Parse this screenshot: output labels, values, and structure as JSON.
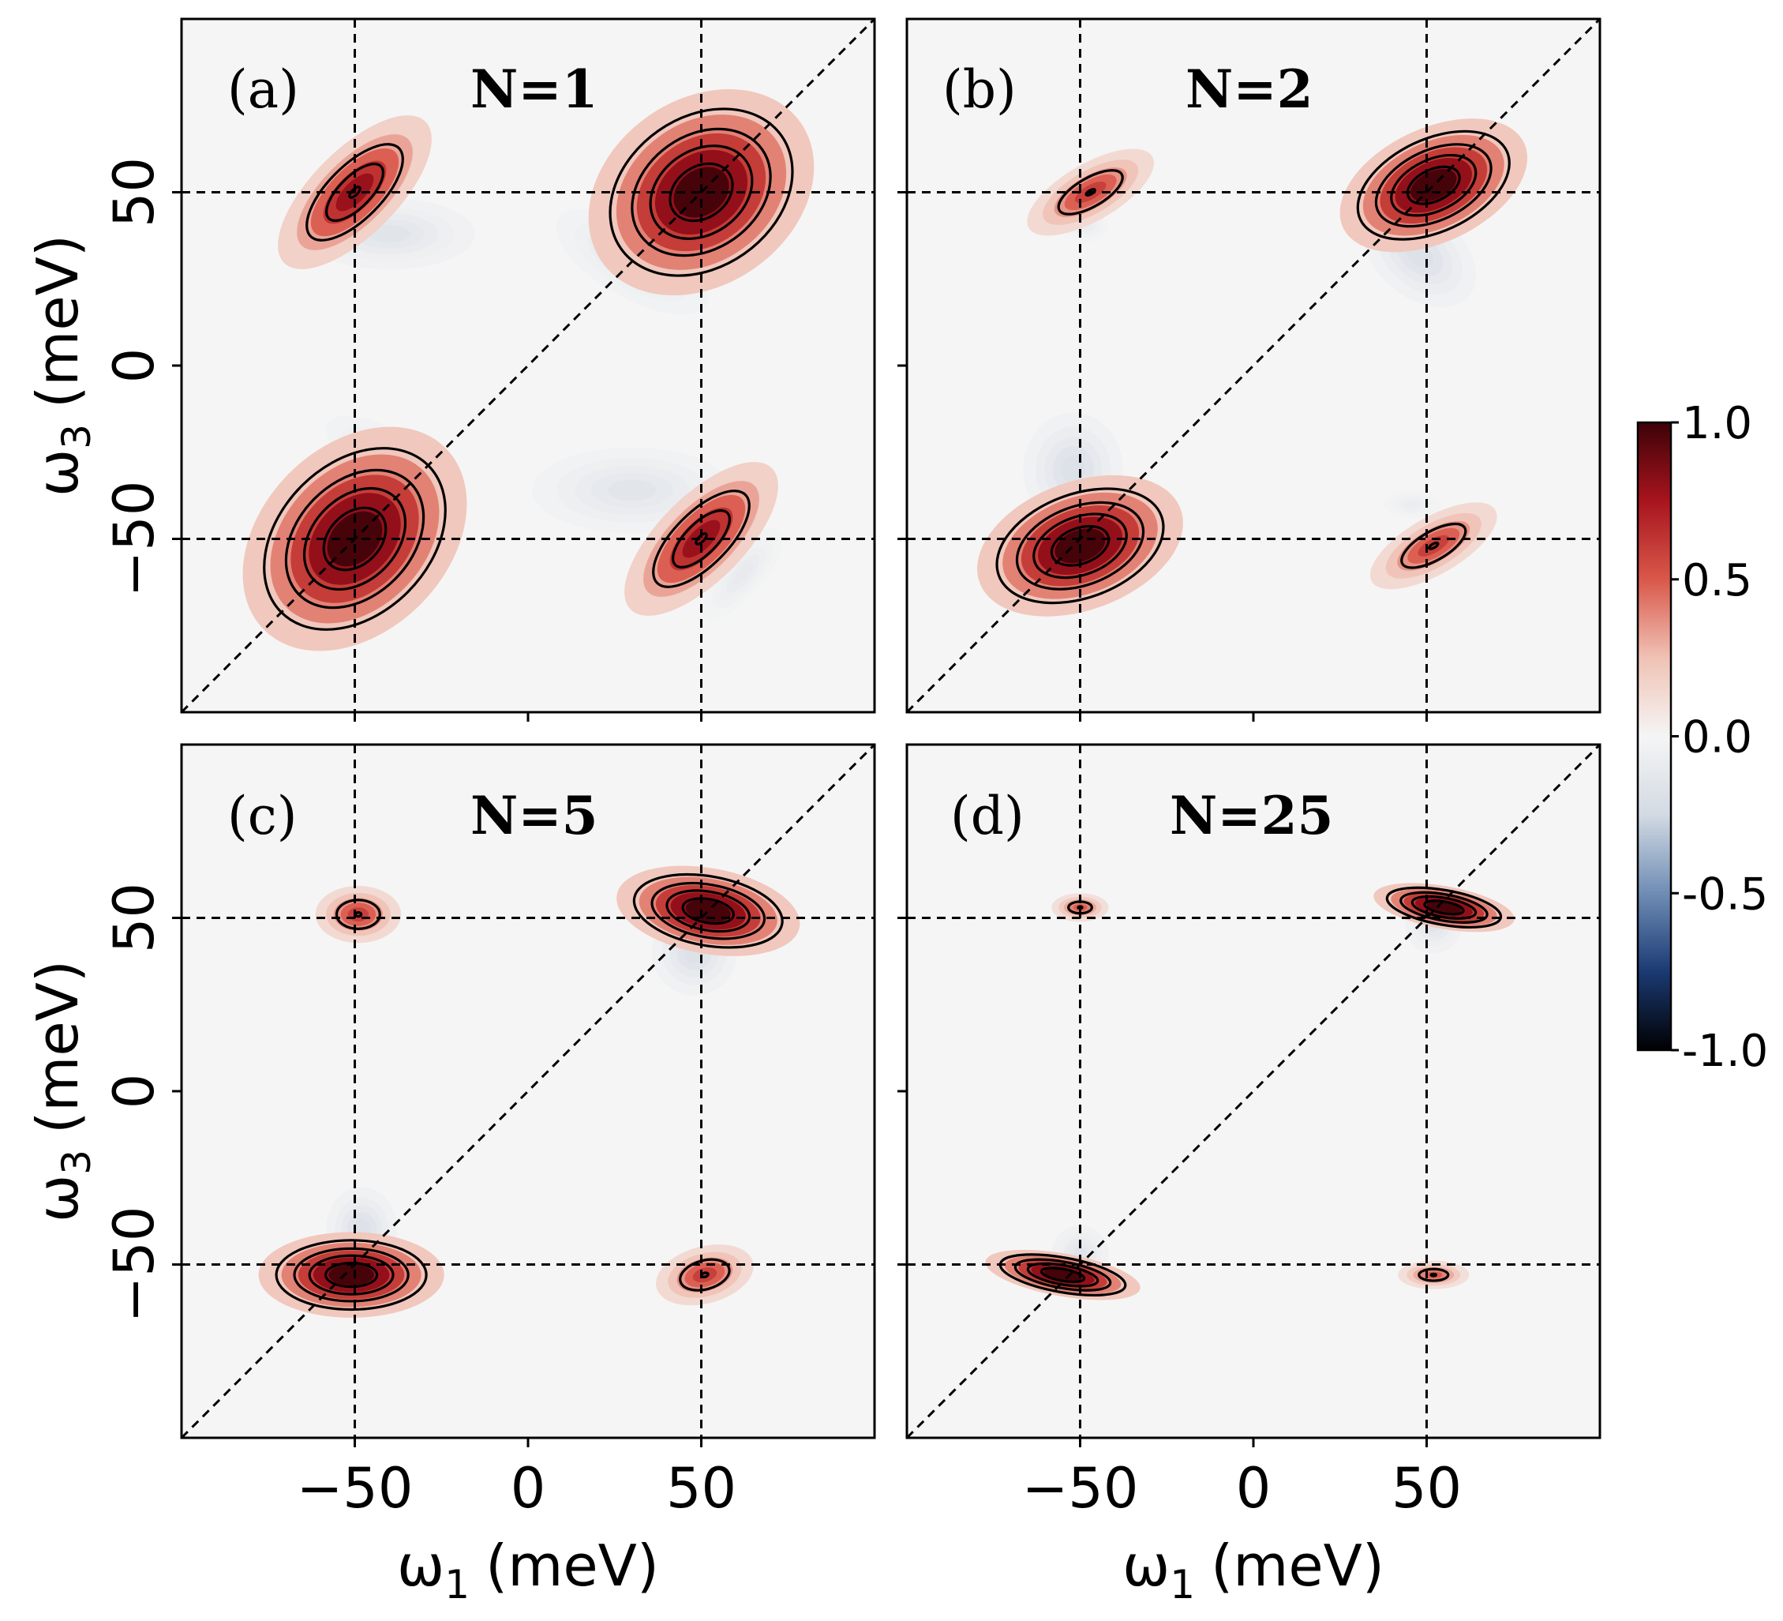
{
  "chart_data": {
    "type": "heatmap",
    "layout": "2x2 panels",
    "x_axis": {
      "label_var": "ω",
      "label_sub": "1",
      "label_unit": "(meV)",
      "range": [
        -100,
        100
      ],
      "ticks": [
        -50,
        0,
        50
      ],
      "tick_labels": [
        "−50",
        "0",
        "50"
      ]
    },
    "y_axis": {
      "label_var": "ω",
      "label_sub": "3",
      "label_unit": "(meV)",
      "range": [
        -100,
        100
      ],
      "ticks": [
        -50,
        0,
        50
      ],
      "tick_labels": [
        "−50",
        "0",
        "50"
      ]
    },
    "reference_lines": {
      "vertical": [
        -50,
        50
      ],
      "horizontal": [
        -50,
        50
      ],
      "diagonal": true,
      "style": "dashed"
    },
    "colorbar": {
      "min": -1.0,
      "max": 1.0,
      "ticks": [
        1.0,
        0.5,
        0.0,
        -0.5,
        -1.0
      ],
      "tick_labels": [
        "1.0",
        "0.5",
        "0.0",
        "-0.5",
        "-1.0"
      ],
      "colormap": [
        "#000000",
        "#1b3a73",
        "#6f8db5",
        "#d3dae3",
        "#f5f5f5",
        "#f0c2b5",
        "#d9584a",
        "#a8141e",
        "#3d0208"
      ]
    },
    "panels": [
      {
        "letter": "(a)",
        "title": "N=1",
        "peaks": [
          {
            "x": -50,
            "y": 50,
            "amp": 0.8,
            "sx": 14,
            "sy": 6,
            "angle": 45,
            "sign": "positive"
          },
          {
            "x": 50,
            "y": 50,
            "amp": 1.0,
            "sx": 17,
            "sy": 13,
            "angle": 35,
            "sign": "positive"
          },
          {
            "x": -50,
            "y": -50,
            "amp": 1.0,
            "sx": 18,
            "sy": 13,
            "angle": 45,
            "sign": "positive"
          },
          {
            "x": 50,
            "y": -50,
            "amp": 0.8,
            "sx": 14,
            "sy": 6,
            "angle": 45,
            "sign": "positive"
          },
          {
            "x": -40,
            "y": 38,
            "amp": -0.15,
            "sx": 12,
            "sy": 5,
            "angle": 0,
            "sign": "negative"
          },
          {
            "x": 30,
            "y": 30,
            "amp": -0.12,
            "sx": 12,
            "sy": 5,
            "angle": -30,
            "sign": "negative"
          },
          {
            "x": -40,
            "y": -27,
            "amp": -0.12,
            "sx": 10,
            "sy": 4,
            "angle": -30,
            "sign": "negative"
          },
          {
            "x": 30,
            "y": -36,
            "amp": -0.14,
            "sx": 14,
            "sy": 6,
            "angle": 0,
            "sign": "negative"
          },
          {
            "x": 62,
            "y": -60,
            "amp": -0.1,
            "sx": 8,
            "sy": 3,
            "angle": 50,
            "sign": "negative"
          }
        ]
      },
      {
        "letter": "(b)",
        "title": "N=2",
        "peaks": [
          {
            "x": -47,
            "y": 50,
            "amp": 0.6,
            "sx": 10,
            "sy": 4,
            "angle": 30,
            "sign": "positive"
          },
          {
            "x": 52,
            "y": 52,
            "amp": 1.0,
            "sx": 14,
            "sy": 8,
            "angle": 25,
            "sign": "positive"
          },
          {
            "x": -50,
            "y": -52,
            "amp": 1.0,
            "sx": 15,
            "sy": 9,
            "angle": 20,
            "sign": "positive"
          },
          {
            "x": 52,
            "y": -52,
            "amp": 0.6,
            "sx": 10,
            "sy": 4,
            "angle": 30,
            "sign": "positive"
          },
          {
            "x": 48,
            "y": 32,
            "amp": -0.18,
            "sx": 9,
            "sy": 6,
            "angle": -40,
            "sign": "negative"
          },
          {
            "x": -52,
            "y": -30,
            "amp": -0.18,
            "sx": 7,
            "sy": 8,
            "angle": 0,
            "sign": "negative"
          },
          {
            "x": -48,
            "y": 40,
            "amp": -0.08,
            "sx": 3,
            "sy": 2,
            "angle": 0,
            "sign": "negative"
          },
          {
            "x": 46,
            "y": -40,
            "amp": -0.08,
            "sx": 4,
            "sy": 2,
            "angle": 0,
            "sign": "negative"
          }
        ]
      },
      {
        "letter": "(c)",
        "title": "N=5",
        "peaks": [
          {
            "x": -49,
            "y": 51,
            "amp": 0.6,
            "sx": 6,
            "sy": 4,
            "angle": 0,
            "sign": "positive"
          },
          {
            "x": 52,
            "y": 52,
            "amp": 1.0,
            "sx": 13,
            "sy": 6,
            "angle": -10,
            "sign": "positive"
          },
          {
            "x": -51,
            "y": -53,
            "amp": 1.0,
            "sx": 13,
            "sy": 6,
            "angle": 0,
            "sign": "positive"
          },
          {
            "x": 51,
            "y": -53,
            "amp": 0.6,
            "sx": 7,
            "sy": 4,
            "angle": 15,
            "sign": "positive"
          },
          {
            "x": 48,
            "y": 40,
            "amp": -0.18,
            "sx": 6,
            "sy": 6,
            "angle": 0,
            "sign": "negative"
          },
          {
            "x": -48,
            "y": -40,
            "amp": -0.18,
            "sx": 5,
            "sy": 6,
            "angle": 0,
            "sign": "negative"
          }
        ]
      },
      {
        "letter": "(d)",
        "title": "N=25",
        "peaks": [
          {
            "x": -50,
            "y": 53,
            "amp": 0.5,
            "sx": 4,
            "sy": 2,
            "angle": 0,
            "sign": "positive"
          },
          {
            "x": 55,
            "y": 53,
            "amp": 1.0,
            "sx": 10,
            "sy": 3,
            "angle": -10,
            "sign": "positive"
          },
          {
            "x": -55,
            "y": -53,
            "amp": 1.0,
            "sx": 11,
            "sy": 3,
            "angle": -10,
            "sign": "positive"
          },
          {
            "x": 52,
            "y": -53,
            "amp": 0.5,
            "sx": 5,
            "sy": 2,
            "angle": 0,
            "sign": "positive"
          },
          {
            "x": 52,
            "y": 48,
            "amp": -0.15,
            "sx": 4,
            "sy": 4,
            "angle": 0,
            "sign": "negative"
          },
          {
            "x": -50,
            "y": -47,
            "amp": -0.15,
            "sx": 4,
            "sy": 4,
            "angle": 0,
            "sign": "negative"
          }
        ]
      }
    ]
  }
}
